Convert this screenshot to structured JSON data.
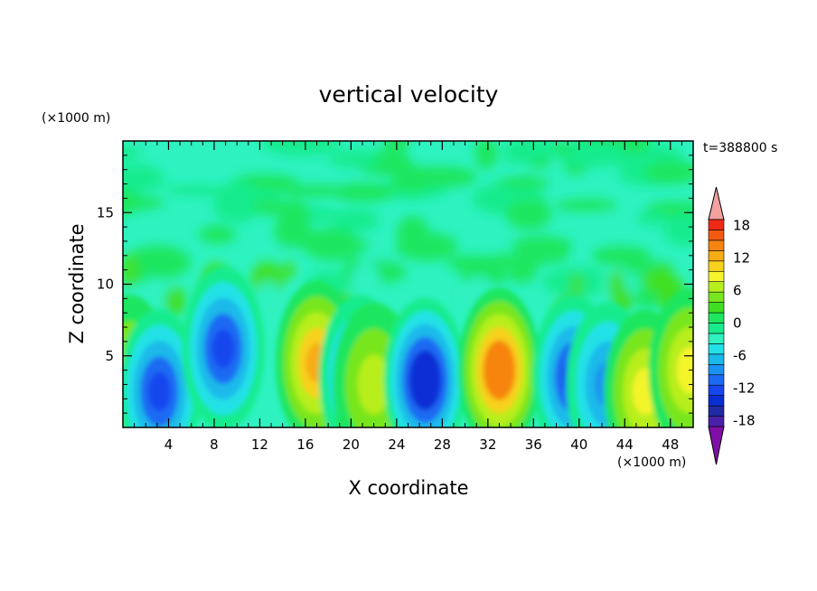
{
  "chart_data": {
    "type": "heatmap",
    "title": "vertical velocity",
    "xlabel": "X coordinate",
    "ylabel": "Z coordinate",
    "x_unit": "(×1000 m)",
    "y_unit": "(×1000 m)",
    "time_label": "t=388800 s",
    "xlim": [
      0,
      50
    ],
    "ylim": [
      0,
      20
    ],
    "x_ticks": [
      4,
      8,
      12,
      16,
      20,
      24,
      28,
      32,
      36,
      40,
      44,
      48
    ],
    "y_ticks": [
      5,
      10,
      15
    ],
    "colorbar": {
      "range": [
        -21,
        21
      ],
      "labels": [
        18,
        12,
        6,
        0,
        -6,
        -12,
        -18
      ],
      "colors": [
        "#7f0fa6",
        "#4b20a8",
        "#1f2ba3",
        "#0a2ed4",
        "#1646ee",
        "#1b6af3",
        "#1a93f0",
        "#1ab9ea",
        "#22e1e6",
        "#2ef2c0",
        "#18ec8e",
        "#1ee65e",
        "#3fe022",
        "#78e61c",
        "#b7ee1e",
        "#f4f42c",
        "#f7d21c",
        "#f7ac14",
        "#f68410",
        "#f25a12",
        "#ee2a14",
        "#f2a0a0"
      ]
    },
    "features": [
      {
        "kind": "updraft",
        "x": 0.6,
        "z": 3.5,
        "value": 6
      },
      {
        "kind": "downdraft",
        "x": 3.2,
        "z": 2.5,
        "value": -12
      },
      {
        "kind": "downdraft",
        "x": 8.8,
        "z": 5.5,
        "value": -12
      },
      {
        "kind": "updraft",
        "x": 17.0,
        "z": 4.5,
        "value": 12
      },
      {
        "kind": "downdraft",
        "x": 20.8,
        "z": 3.5,
        "value": -9
      },
      {
        "kind": "updraft",
        "x": 22.0,
        "z": 3.0,
        "value": 6
      },
      {
        "kind": "downdraft",
        "x": 26.5,
        "z": 3.3,
        "value": -15
      },
      {
        "kind": "updraft",
        "x": 33.0,
        "z": 4.0,
        "value": 15
      },
      {
        "kind": "downdraft",
        "x": 39.5,
        "z": 3.5,
        "value": -12
      },
      {
        "kind": "downdraft",
        "x": 42.5,
        "z": 3.0,
        "value": -9
      },
      {
        "kind": "updraft",
        "x": 45.8,
        "z": 2.5,
        "value": 9
      },
      {
        "kind": "updraft",
        "x": 49.7,
        "z": 4.0,
        "value": 9
      }
    ]
  }
}
